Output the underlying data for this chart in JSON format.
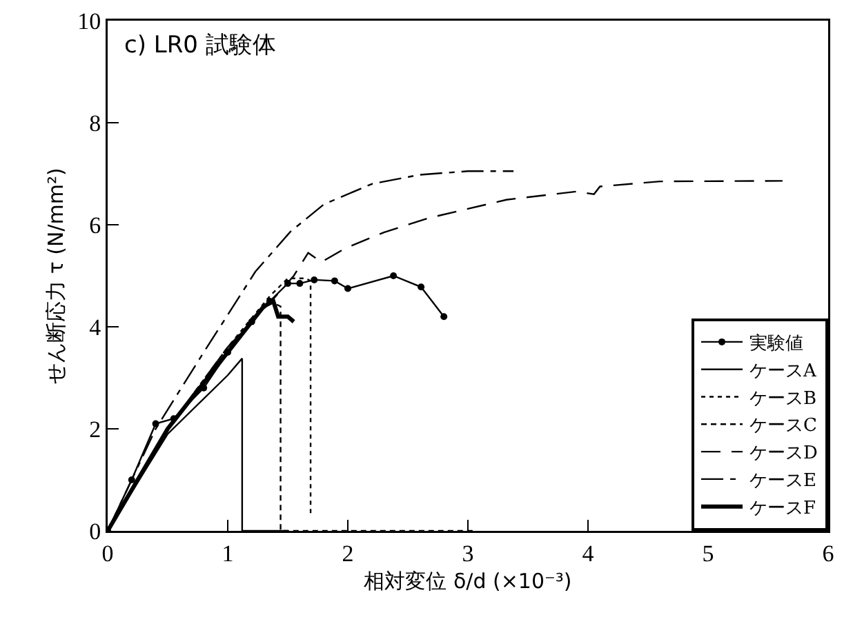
{
  "chart_data": {
    "type": "line",
    "title": "c) LR0 試験体",
    "xlabel": "相対変位 δ/d (×10⁻³)",
    "ylabel": "せん断応力 τ (N/mm²)",
    "xlim": [
      0,
      6
    ],
    "xticks": [
      0,
      1,
      2,
      3,
      4,
      5,
      6
    ],
    "ylim": [
      0,
      10
    ],
    "yticks": [
      0,
      2,
      4,
      6,
      8,
      10
    ],
    "grid": false,
    "legend": "bottom right",
    "series": [
      {
        "name": "実験値",
        "color": "#000000",
        "marker": "circle",
        "line_style": "solid",
        "x": [
          0,
          0.2,
          0.4,
          0.55,
          0.8,
          1.0,
          1.2,
          1.35,
          1.5,
          1.6,
          1.72,
          1.89,
          2.0,
          2.38,
          2.61,
          2.8
        ],
        "values": [
          0,
          1.0,
          2.1,
          2.2,
          2.8,
          3.5,
          4.1,
          4.5,
          4.85,
          4.85,
          4.92,
          4.9,
          4.75,
          5.0,
          4.78,
          4.2
        ]
      },
      {
        "name": "ケースA",
        "color": "#000000",
        "marker": "none",
        "line_style": "solid",
        "x": [
          0,
          0.5,
          1.0,
          1.12,
          1.12,
          1.5
        ],
        "values": [
          0,
          1.9,
          3.05,
          3.38,
          0,
          0
        ]
      },
      {
        "name": "ケースB",
        "color": "#000000",
        "marker": "none",
        "line_style": "dotted",
        "x": [
          0,
          0.5,
          1.0,
          1.35,
          1.5,
          1.65,
          1.69,
          1.69
        ],
        "values": [
          0,
          2.0,
          3.6,
          4.6,
          4.95,
          4.95,
          4.9,
          0.32
        ]
      },
      {
        "name": "ケースC",
        "color": "#000000",
        "marker": "none",
        "line_style": "dashed",
        "x": [
          0,
          0.5,
          1.0,
          1.35,
          1.44,
          1.44,
          3.07
        ],
        "values": [
          0,
          2.0,
          3.6,
          4.5,
          4.4,
          0,
          0
        ]
      },
      {
        "name": "ケースD",
        "color": "#000000",
        "marker": "none",
        "line_style": "dashed",
        "x": [
          0,
          0.5,
          1.0,
          1.4,
          1.55,
          1.67,
          1.78,
          1.98,
          2.3,
          2.67,
          3.32,
          3.9,
          4.05,
          4.1,
          4.6,
          5.62
        ],
        "values": [
          0,
          2.0,
          3.6,
          4.6,
          5.0,
          5.45,
          5.27,
          5.54,
          5.85,
          6.13,
          6.49,
          6.65,
          6.6,
          6.75,
          6.85,
          6.86
        ]
      },
      {
        "name": "ケースE",
        "color": "#000000",
        "marker": "none",
        "line_style": "dashed",
        "x": [
          0,
          0.4,
          0.8,
          1.23,
          1.52,
          1.8,
          2.2,
          2.6,
          3.0,
          3.38
        ],
        "values": [
          0,
          2.0,
          3.5,
          5.08,
          5.86,
          6.4,
          6.8,
          6.98,
          7.05,
          7.05
        ]
      },
      {
        "name": "ケースF",
        "color": "#000000",
        "marker": "none",
        "line_style": "solid",
        "x": [
          0,
          0.5,
          1.0,
          1.3,
          1.38,
          1.42,
          1.5,
          1.55
        ],
        "values": [
          0,
          2.0,
          3.5,
          4.4,
          4.5,
          4.2,
          4.2,
          4.1
        ]
      }
    ]
  }
}
